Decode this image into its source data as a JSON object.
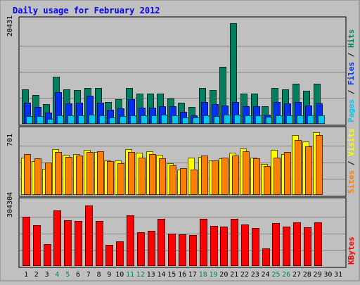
{
  "chart_data": {
    "type": "bar",
    "title": "Daily usage for February 2012",
    "days": [
      "1",
      "2",
      "3",
      "4",
      "5",
      "6",
      "7",
      "8",
      "9",
      "10",
      "11",
      "12",
      "13",
      "14",
      "15",
      "16",
      "17",
      "18",
      "19",
      "20",
      "21",
      "22",
      "23",
      "24",
      "25",
      "26",
      "27",
      "28",
      "29",
      "30",
      "31"
    ],
    "weekend_days": [
      "4",
      "5",
      "11",
      "12",
      "18",
      "19",
      "25",
      "26"
    ],
    "panels": [
      {
        "id": "top",
        "y_max_label": "20431",
        "ylim": [
          0,
          20431
        ],
        "right_label": [
          {
            "text": "Pages",
            "color": "#00c8f0"
          },
          {
            "text": " / ",
            "color": "#000000"
          },
          {
            "text": "Files",
            "color": "#0030f0"
          },
          {
            "text": " / ",
            "color": "#000000"
          },
          {
            "text": "Hits",
            "color": "#008060"
          }
        ],
        "series": [
          {
            "name": "Hits",
            "color": "#008060",
            "values": [
              6700,
              5700,
              3900,
              9200,
              6700,
              6600,
              7100,
              7000,
              4300,
              4900,
              7100,
              5900,
              6000,
              5900,
              5000,
              4200,
              3300,
              7000,
              6600,
              11200,
              19700,
              6000,
              6000,
              3400,
              7100,
              6800,
              7800,
              6500,
              7900,
              0,
              0
            ]
          },
          {
            "name": "Files",
            "color": "#0030f0",
            "values": [
              4100,
              3300,
              2200,
              6200,
              4000,
              4100,
              5500,
              4200,
              2700,
              3000,
              4900,
              3200,
              3200,
              3500,
              3400,
              2400,
              1600,
              4300,
              3900,
              3600,
              4300,
              3500,
              3500,
              1800,
              4300,
              4000,
              4300,
              3600,
              4000,
              0,
              0
            ]
          },
          {
            "name": "Pages",
            "color": "#00c8f0",
            "values": [
              1500,
              1500,
              1000,
              1700,
              1600,
              1700,
              1800,
              1700,
              1300,
              1500,
              1600,
              1600,
              1600,
              1800,
              1700,
              1300,
              1200,
              1600,
              1500,
              1800,
              1800,
              1700,
              1600,
              1400,
              1600,
              1700,
              1700,
              1600,
              1700,
              0,
              0
            ]
          }
        ]
      },
      {
        "id": "middle",
        "y_max_label": "701",
        "ylim": [
          0,
          701
        ],
        "right_label": [
          {
            "text": "Sites",
            "color": "#ff8000"
          },
          {
            "text": " / ",
            "color": "#000000"
          },
          {
            "text": "Visits",
            "color": "#ffff00"
          }
        ],
        "series": [
          {
            "name": "Visits",
            "color": "#ffff00",
            "values": [
              400,
              360,
              280,
              490,
              430,
              440,
              480,
              460,
              370,
              370,
              490,
              450,
              470,
              430,
              340,
              270,
              400,
              410,
              370,
              390,
              450,
              500,
              400,
              330,
              480,
              440,
              640,
              570,
              670,
              0,
              0
            ]
          },
          {
            "name": "Sites",
            "color": "#ff8000",
            "values": [
              440,
              390,
              350,
              460,
              410,
              420,
              460,
              470,
              360,
              340,
              460,
              400,
              440,
              390,
              320,
              290,
              270,
              420,
              370,
              400,
              420,
              470,
              390,
              310,
              400,
              460,
              590,
              520,
              640,
              0,
              0
            ]
          }
        ]
      },
      {
        "id": "bottom",
        "y_max_label": "304304",
        "ylim": [
          0,
          304304
        ],
        "right_label": [
          {
            "text": "KBytes",
            "color": "#ff0000"
          }
        ],
        "series": [
          {
            "name": "KBytes",
            "color": "#ff0000",
            "values": [
              228000,
              190000,
              101000,
              260000,
              212000,
              210000,
              280000,
              210000,
              98000,
              116000,
              234000,
              157000,
              162000,
              219000,
              150000,
              147000,
              145000,
              220000,
              186000,
              182000,
              218000,
              193000,
              178000,
              82000,
              198000,
              184000,
              204000,
              181000,
              202000,
              0,
              0
            ]
          }
        ]
      }
    ]
  }
}
